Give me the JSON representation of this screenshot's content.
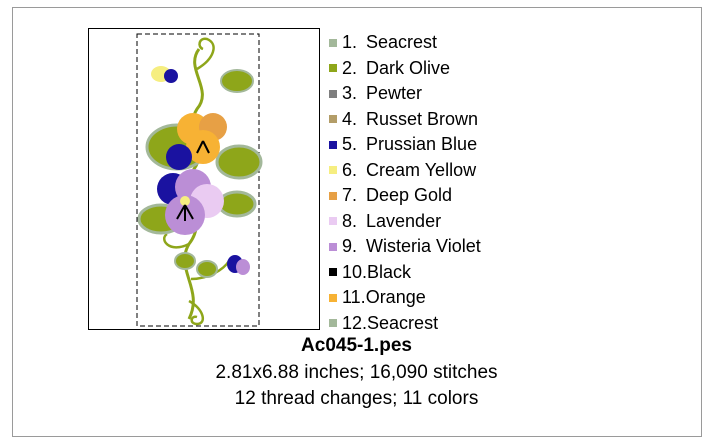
{
  "threads": [
    {
      "num": "1.",
      "name": "Seacrest",
      "color": "#a3b89a"
    },
    {
      "num": "2.",
      "name": "Dark Olive",
      "color": "#8ea61a"
    },
    {
      "num": "3.",
      "name": "Pewter",
      "color": "#7e7e7e"
    },
    {
      "num": "4.",
      "name": "Russet Brown",
      "color": "#b39d68"
    },
    {
      "num": "5.",
      "name": "Prussian Blue",
      "color": "#1a12a0"
    },
    {
      "num": "6.",
      "name": "Cream Yellow",
      "color": "#f6ee80"
    },
    {
      "num": "7.",
      "name": "Deep Gold",
      "color": "#e7a045"
    },
    {
      "num": "8.",
      "name": "Lavender",
      "color": "#eacbf2"
    },
    {
      "num": "9.",
      "name": "Wisteria Violet",
      "color": "#bb8ed6"
    },
    {
      "num": "10.",
      "name": "Black",
      "color": "#000000"
    },
    {
      "num": "11.",
      "name": "Orange",
      "color": "#f7b234"
    },
    {
      "num": "12.",
      "name": "Seacrest",
      "color": "#a3b89a"
    }
  ],
  "design": {
    "filename": "Ac045-1.pes",
    "dimensions_line": "2.81x6.88 inches; 16,090 stitches",
    "changes_line": "12 thread changes; 11 colors"
  }
}
